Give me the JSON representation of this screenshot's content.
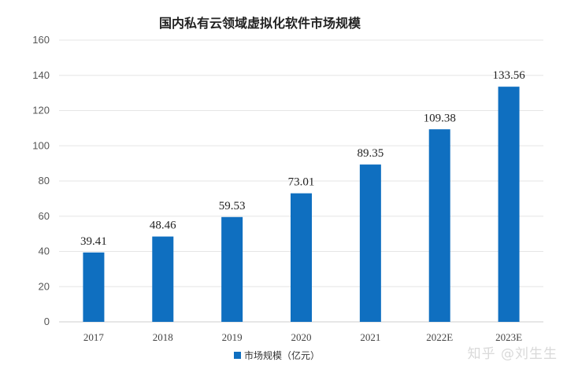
{
  "chart_data": {
    "type": "bar",
    "title": "国内私有云领域虚拟化软件市场规模",
    "categories": [
      "2017",
      "2018",
      "2019",
      "2020",
      "2021",
      "2022E",
      "2023E"
    ],
    "series": [
      {
        "name": "市场规模（亿元）",
        "values": [
          39.41,
          48.46,
          59.53,
          73.01,
          89.35,
          109.38,
          133.56
        ]
      }
    ],
    "data_labels": [
      "39.41",
      "48.46",
      "59.53",
      "73.01",
      "89.35",
      "109.38",
      "133.56"
    ],
    "ylim": [
      0,
      160
    ],
    "yticks": [
      0,
      20,
      40,
      60,
      80,
      100,
      120,
      140,
      160
    ],
    "grid": true,
    "legend_position": "bottom",
    "colors": {
      "bar": "#0f6fc0",
      "grid": "#e6e6e6",
      "axis": "#cccccc"
    }
  },
  "watermark": "知乎 @刘生生"
}
